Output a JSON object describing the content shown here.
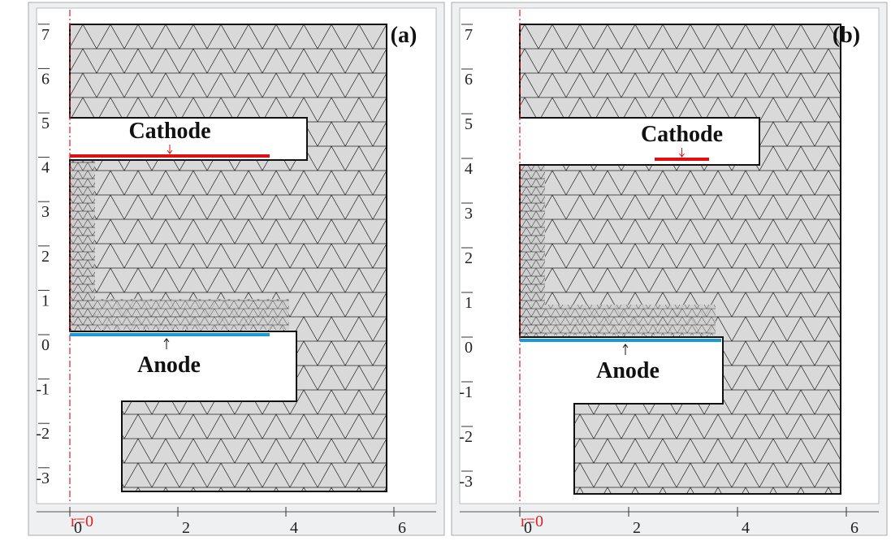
{
  "panels": [
    {
      "label": "(a)",
      "cathode": "Cathode",
      "anode": "Anode",
      "axis_label": "r=0",
      "yticks": [
        7,
        6,
        5,
        4,
        3,
        2,
        1,
        0,
        -1,
        -2,
        -3
      ],
      "xticks": [
        0,
        2,
        4,
        6
      ]
    },
    {
      "label": "(b)",
      "cathode": "Cathode",
      "anode": "Anode",
      "axis_label": "r=0",
      "yticks": [
        7,
        6,
        5,
        4,
        3,
        2,
        1,
        0,
        -1,
        -2,
        -3
      ],
      "xticks": [
        0,
        2,
        4,
        6
      ]
    }
  ]
}
